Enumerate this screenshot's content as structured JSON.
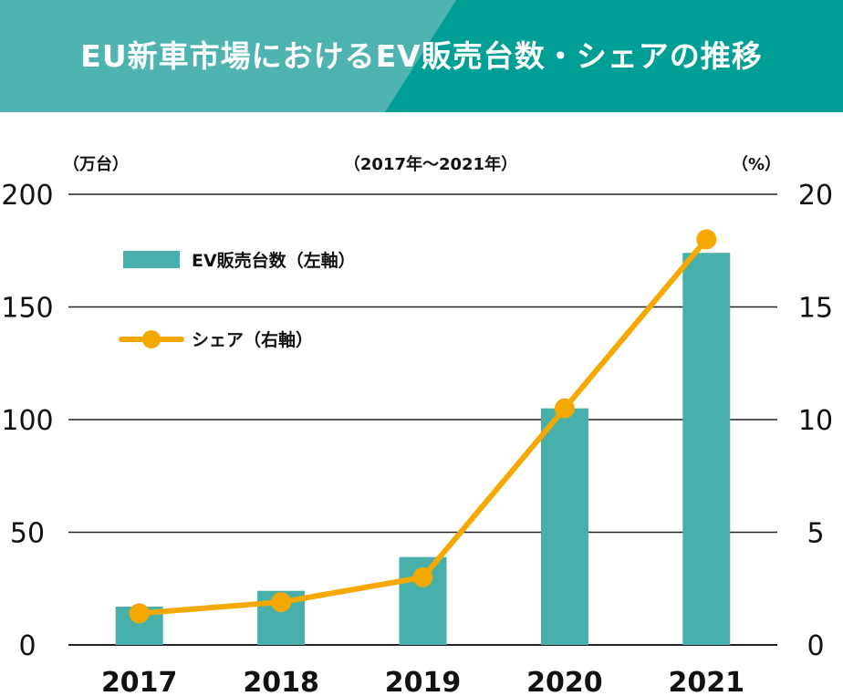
{
  "title": "EU新車市場におけるEV販売台数・シェアの推移",
  "colors": {
    "header_light": "#4fb4b0",
    "header_dark": "#009f96",
    "bar": "#48b0aa",
    "line": "#f5a800",
    "grid": "#222222",
    "text": "#111111"
  },
  "chart_data": {
    "type": "bar+line",
    "title": "EU新車市場におけるEV販売台数・シェアの推移",
    "subtitle": "（2017年〜2021年）",
    "left_axis_unit": "（万台）",
    "right_axis_unit": "（%）",
    "categories": [
      "2017",
      "2018",
      "2019",
      "2020",
      "2021"
    ],
    "left_ylim": [
      0,
      200
    ],
    "left_ticks": [
      0,
      50,
      100,
      150,
      200
    ],
    "right_ylim": [
      0,
      20
    ],
    "right_ticks": [
      0,
      5,
      10,
      15,
      20
    ],
    "grid": true,
    "legend_placement": "top-left",
    "series": [
      {
        "name": "EV販売台数（左軸）",
        "type": "bar",
        "axis": "left",
        "values": [
          17,
          24,
          39,
          105,
          174
        ]
      },
      {
        "name": "シェア（右軸）",
        "type": "line",
        "axis": "right",
        "values": [
          1.4,
          1.9,
          3.0,
          10.5,
          18.0
        ]
      }
    ]
  }
}
